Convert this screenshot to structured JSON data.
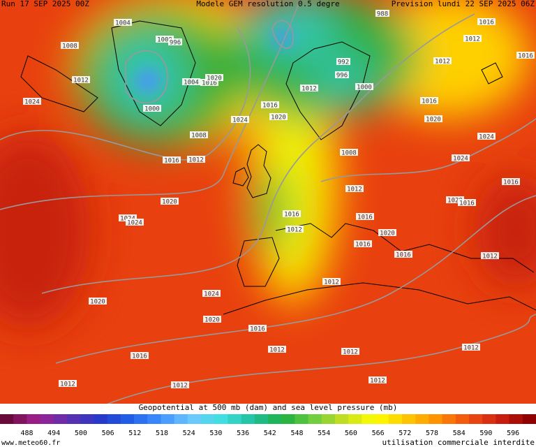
{
  "header": {
    "left": "Run 17 SEP 2025 00Z",
    "center": "Modele GEM resolution 0.5 degre",
    "right": "Prevision lundi 22 SEP 2025 06Z"
  },
  "pressure_labels": [
    "1004",
    "1000",
    "996",
    "1008",
    "1012",
    "1024",
    "1004",
    "1016",
    "1020",
    "1000",
    "1008",
    "1016",
    "1012",
    "1020",
    "1024",
    "1024",
    "1020",
    "1024",
    "1020",
    "1016",
    "1016",
    "1012",
    "1012",
    "1012",
    "1012",
    "1012",
    "1012",
    "1012",
    "1016",
    "1016",
    "1012",
    "1020",
    "1016",
    "1016",
    "1012",
    "1012",
    "1008",
    "1016",
    "1020",
    "1024",
    "1012",
    "996",
    "992",
    "1000",
    "988",
    "1016",
    "1012",
    "1012",
    "1016",
    "1020",
    "1024",
    "1024",
    "1016",
    "1020",
    "1016",
    "1016"
  ],
  "legend": {
    "title": "Geopotential at 500 mb (dam) and sea level pressure (mb)",
    "ticks": [
      "488",
      "494",
      "500",
      "506",
      "512",
      "518",
      "524",
      "530",
      "536",
      "542",
      "548",
      "554",
      "560",
      "566",
      "572",
      "578",
      "584",
      "590",
      "596"
    ]
  },
  "footer": {
    "left": "www.meteo60.fr",
    "right": "utilisation commerciale interdite"
  }
}
